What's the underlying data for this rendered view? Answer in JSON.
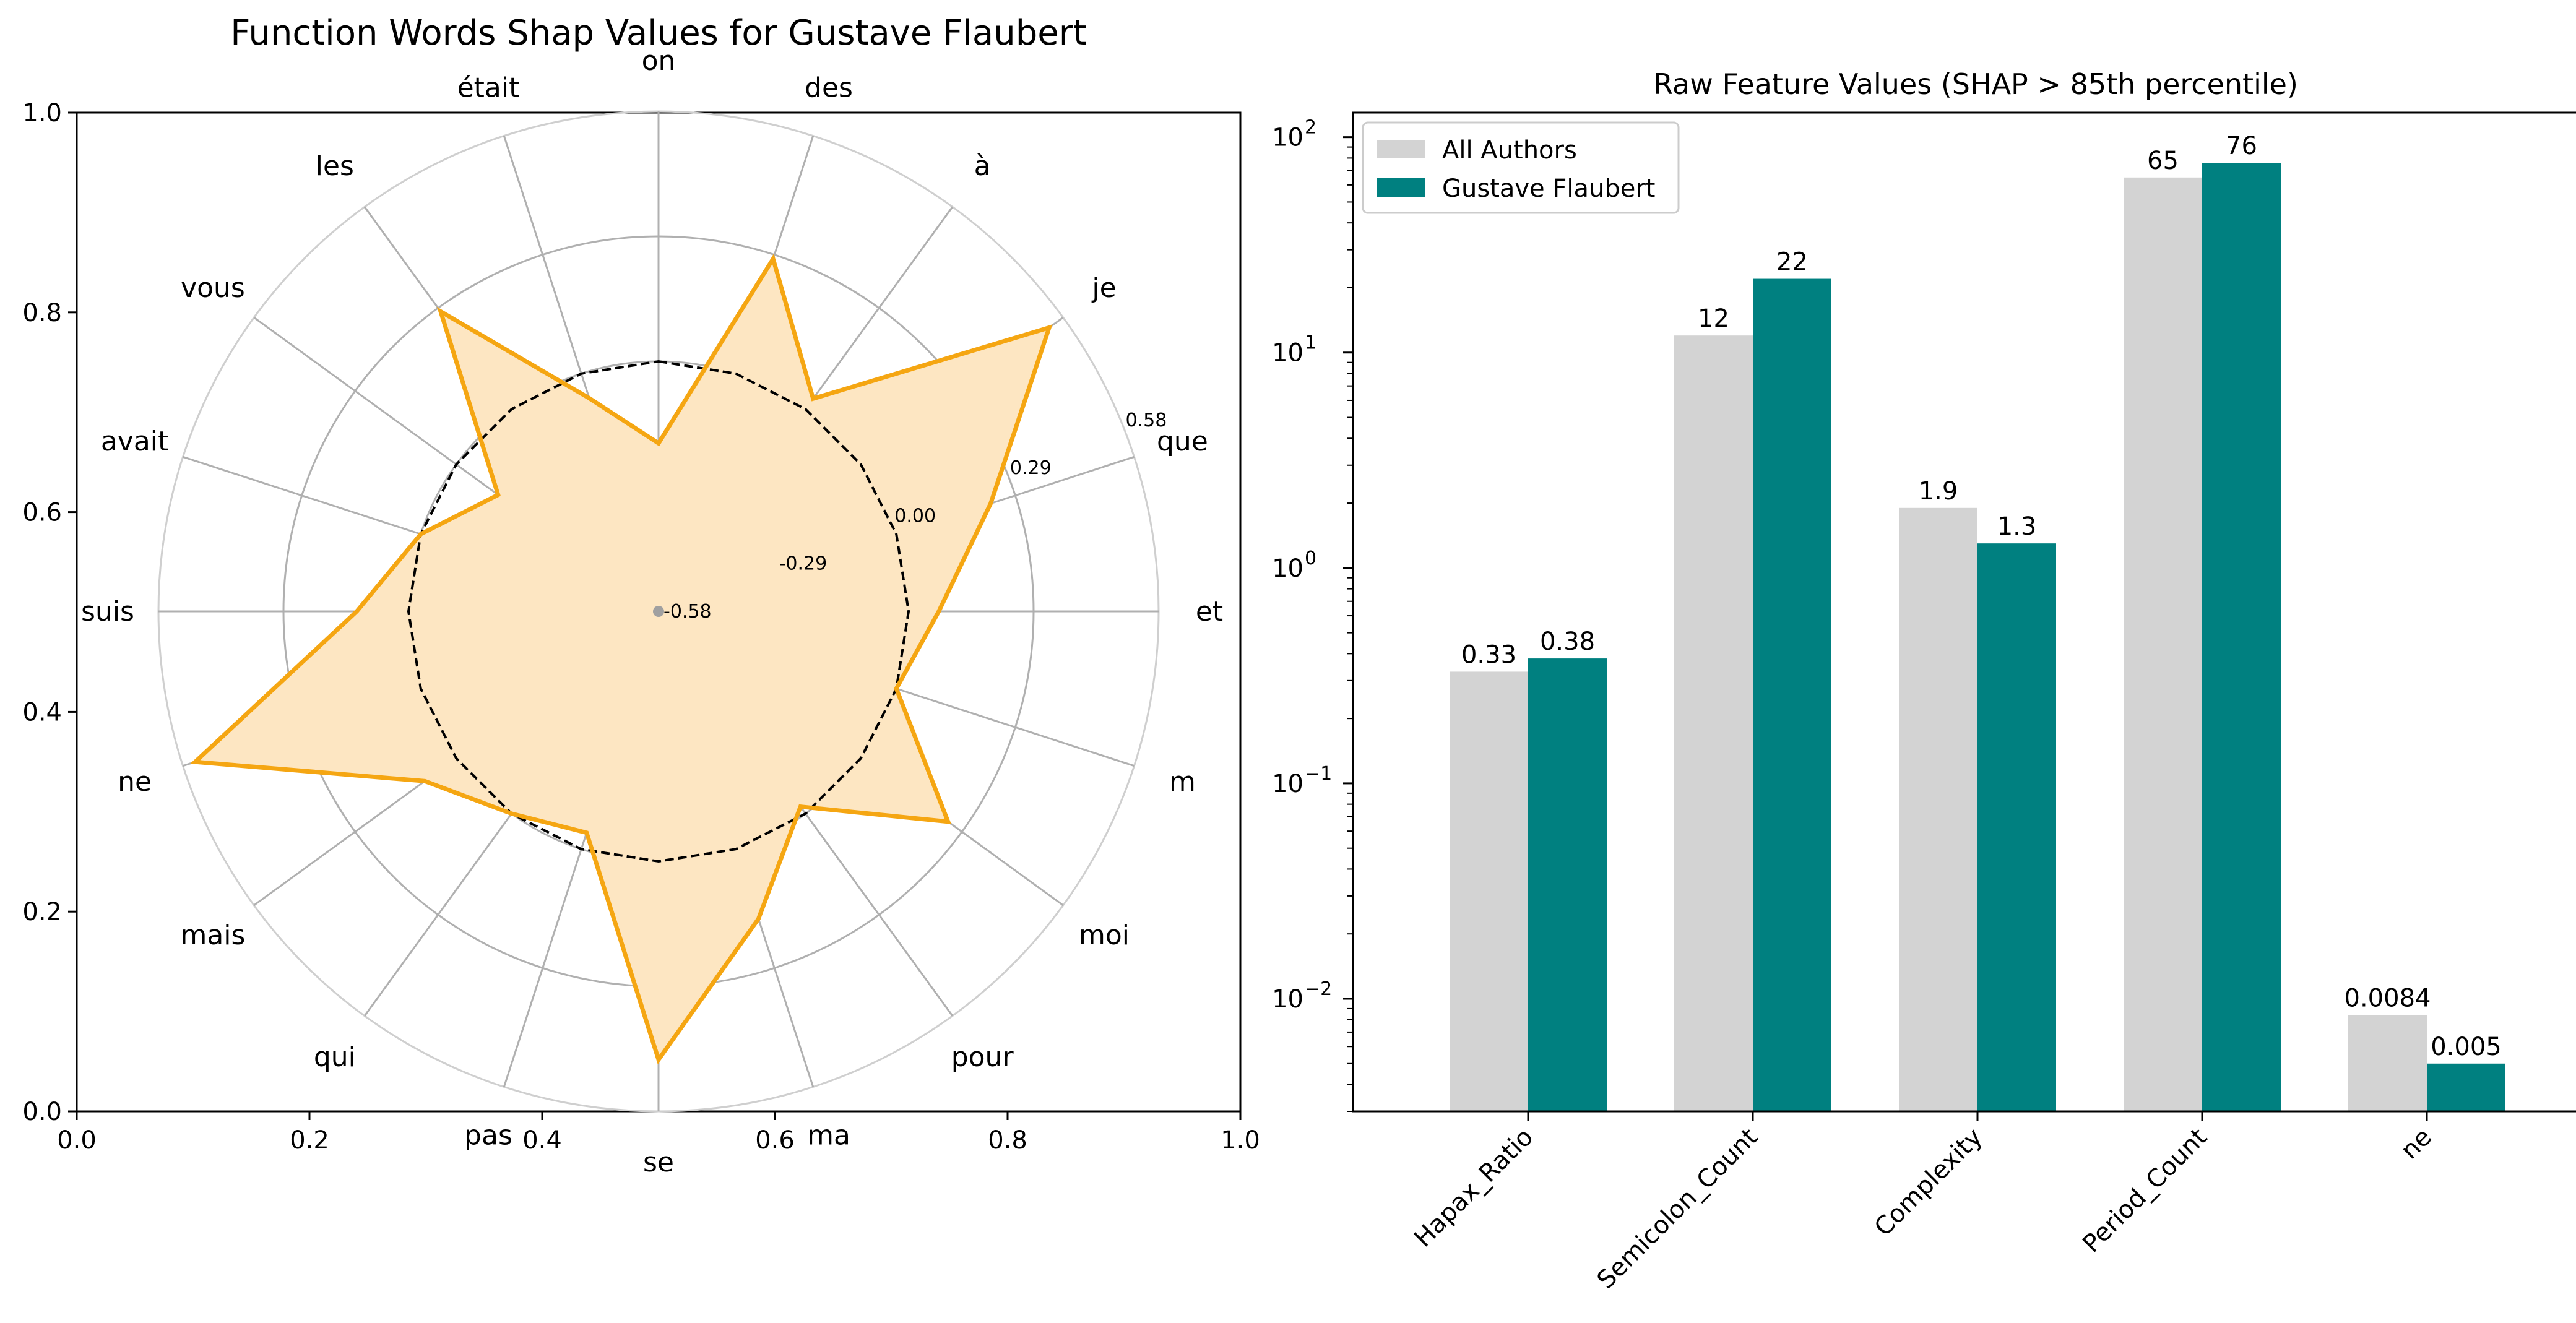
{
  "colors": {
    "radar_line": "#f5a612",
    "radar_fill": "#fde6c2",
    "baseline": "#000000",
    "grid": "#b0b0b0",
    "all_authors": "#d3d3d3",
    "author": "#008080"
  },
  "chart_data": [
    {
      "type": "radar",
      "title": "Function Words Shap Values for Gustave Flaubert",
      "frame_ticks": {
        "x": [
          "0.0",
          "0.2",
          "0.4",
          "0.6",
          "0.8",
          "1.0"
        ],
        "y": [
          "0.0",
          "0.2",
          "0.4",
          "0.6",
          "0.8",
          "1.0"
        ]
      },
      "categories": [
        "on",
        "des",
        "à",
        "je",
        "que",
        "et",
        "m",
        "moi",
        "pour",
        "ma",
        "se",
        "pas",
        "qui",
        "mais",
        "ne",
        "suis",
        "avait",
        "vous",
        "les",
        "était"
      ],
      "values": [
        -0.19,
        0.28,
        0.03,
        0.54,
        0.23,
        0.07,
        0.0,
        0.25,
        -0.02,
        0.17,
        0.46,
        -0.04,
        0.0,
        0.09,
        0.55,
        0.12,
        0.0,
        -0.12,
        0.28,
        -0.06
      ],
      "baseline": 0.0,
      "rlim": [
        -0.58,
        0.58
      ],
      "rticks": [
        -0.58,
        -0.29,
        0.0,
        0.29,
        0.58
      ],
      "rtick_labels": [
        "-0.58",
        "-0.29",
        "0.00",
        "0.29",
        "0.58"
      ]
    },
    {
      "type": "bar",
      "title": "Raw Feature Values (SHAP > 85th percentile)",
      "categories": [
        "Hapax_Ratio",
        "Semicolon_Count",
        "Complexity",
        "Period_Count",
        "ne"
      ],
      "yscale": "log",
      "ylim": [
        0.003,
        130
      ],
      "ytick_exponents": [
        "−2",
        "−1",
        "0",
        "1",
        "2"
      ],
      "series": [
        {
          "name": "All Authors",
          "values": [
            0.33,
            12,
            1.9,
            65,
            0.0084
          ],
          "labels": [
            "0.33",
            "12",
            "1.9",
            "65",
            "0.0084"
          ]
        },
        {
          "name": "Gustave Flaubert",
          "values": [
            0.38,
            22,
            1.3,
            76,
            0.005
          ],
          "labels": [
            "0.38",
            "22",
            "1.3",
            "76",
            "0.005"
          ]
        }
      ],
      "legend": "top-left"
    }
  ]
}
